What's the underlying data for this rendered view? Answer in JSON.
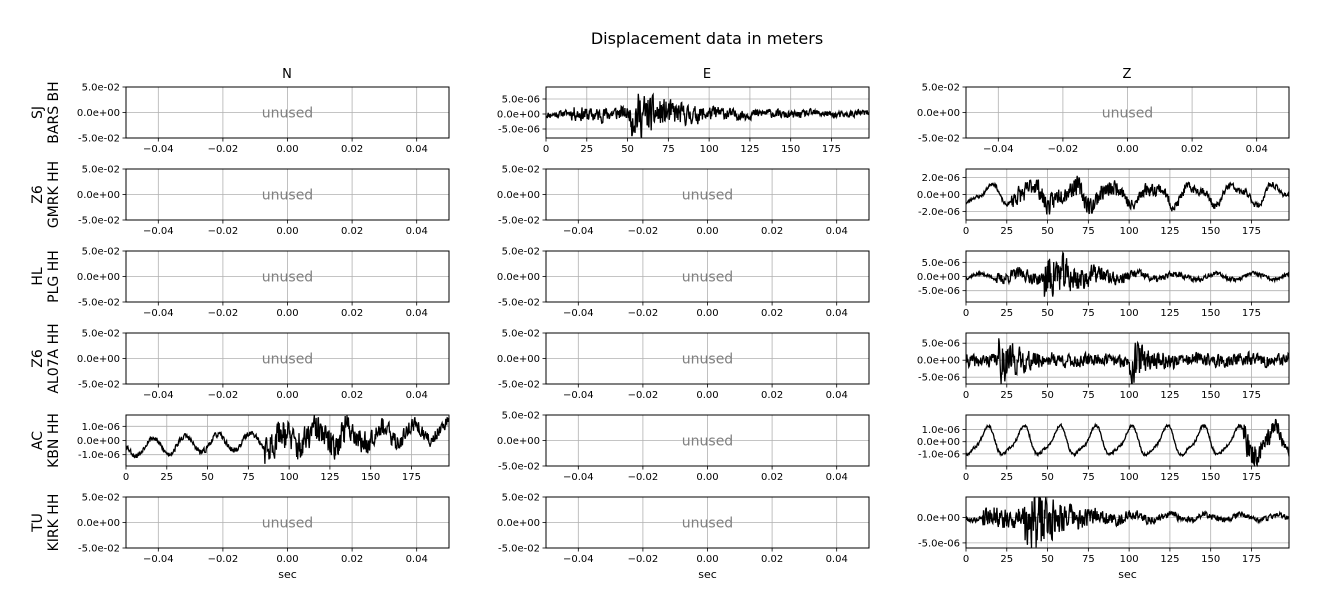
{
  "chart_data": {
    "type": "line",
    "title": "Displacement data in meters",
    "columns": [
      "N",
      "E",
      "Z"
    ],
    "xlabel": "sec",
    "unused_label": "unused",
    "line_color": "#000000",
    "grid": true,
    "unused_panel": {
      "xlim": [
        -0.05,
        0.05
      ],
      "xticks": [
        -0.04,
        -0.02,
        0.0,
        0.02,
        0.04
      ],
      "xtick_labels": [
        "−0.04",
        "−0.02",
        "0.00",
        "0.02",
        "0.04"
      ],
      "ylim": [
        -0.05,
        0.05
      ],
      "yticks": [
        0.05,
        0.0,
        -0.05
      ],
      "ytick_labels": [
        "5.0e-02",
        "0.0e+00",
        "-5.0e-02"
      ]
    },
    "rows": [
      {
        "label_line1": "SJ",
        "label_line2": "BARS BH",
        "panels": [
          {
            "used": false
          },
          {
            "used": true,
            "amp": 7e-06,
            "noise": 0.2,
            "seed": 11,
            "events": [
              {
                "t": 15,
                "t2": 45,
                "a": 0.25,
                "dur": 40
              },
              {
                "t": 52,
                "t2": 58,
                "a": 1.0,
                "dur": 25
              }
            ],
            "waves": [
              {
                "p": 30,
                "a": 0.05
              }
            ],
            "ylim": [
              -8e-06,
              9e-06
            ],
            "yticks": [
              5e-06,
              0.0,
              -5e-06
            ],
            "ytick_labels": [
              "5.0e-06",
              "0.0e+00",
              "-5.0e-06"
            ]
          },
          {
            "used": false
          }
        ]
      },
      {
        "label_line1": "Z6",
        "label_line2": "GMRK HH",
        "panels": [
          {
            "used": false
          },
          {
            "used": false
          },
          {
            "used": true,
            "amp": 2.2e-06,
            "noise": 0.12,
            "seed": 23,
            "events": [
              {
                "t": 28,
                "t2": 80,
                "a": 0.55,
                "dur": 60
              }
            ],
            "waves": [
              {
                "p": 25,
                "a": 0.45
              },
              {
                "p": 13,
                "a": 0.2
              }
            ],
            "ylim": [
              -3e-06,
              3e-06
            ],
            "yticks": [
              2e-06,
              0.0,
              -2e-06
            ],
            "ytick_labels": [
              "2.0e-06",
              "0.0e+00",
              "-2.0e-06"
            ]
          }
        ]
      },
      {
        "label_line1": "HL",
        "label_line2": "PLG HH",
        "panels": [
          {
            "used": false
          },
          {
            "used": false
          },
          {
            "used": true,
            "amp": 8e-06,
            "noise": 0.1,
            "seed": 37,
            "events": [
              {
                "t": 18,
                "t2": 45,
                "a": 0.25,
                "dur": 50
              },
              {
                "t": 48,
                "t2": 55,
                "a": 1.0,
                "dur": 20
              }
            ],
            "waves": [
              {
                "p": 24,
                "a": 0.12
              }
            ],
            "ylim": [
              -9e-06,
              9e-06
            ],
            "yticks": [
              5e-06,
              0.0,
              -5e-06
            ],
            "ytick_labels": [
              "5.0e-06",
              "0.0e+00",
              "-5.0e-06"
            ]
          }
        ]
      },
      {
        "label_line1": "Z6",
        "label_line2": "AL07A HH",
        "panels": [
          {
            "used": false
          },
          {
            "used": false
          },
          {
            "used": true,
            "amp": 7e-06,
            "noise": 0.35,
            "seed": 41,
            "events": [
              {
                "t": 20,
                "t2": 23,
                "a": 0.9,
                "dur": 10
              },
              {
                "t": 100,
                "t2": 103,
                "a": 0.9,
                "dur": 8
              }
            ],
            "waves": [
              {
                "p": 30,
                "a": 0.05
              }
            ],
            "ylim": [
              -7e-06,
              8e-06
            ],
            "yticks": [
              5e-06,
              0.0,
              -5e-06
            ],
            "ytick_labels": [
              "5.0e-06",
              "0.0e+00",
              "-5.0e-06"
            ]
          }
        ]
      },
      {
        "label_line1": "AC",
        "label_line2": "KBN HH",
        "panels": [
          {
            "used": true,
            "amp": 1.7e-06,
            "noise": 0.15,
            "seed": 53,
            "events": [
              {
                "t": 85,
                "t2": 130,
                "a": 0.7,
                "dur": 50
              }
            ],
            "waves": [
              {
                "p": 20,
                "a": 0.35
              }
            ],
            "trend": [
              -0.3,
              0.4
            ],
            "ylim": [
              -1.8e-06,
              1.8e-06
            ],
            "yticks": [
              1e-06,
              0.0,
              -1e-06
            ],
            "ytick_labels": [
              "1.0e-06",
              "0.0e+00",
              "-1.0e-06"
            ]
          },
          {
            "used": false
          },
          {
            "used": true,
            "amp": 2e-06,
            "noise": 0.08,
            "seed": 67,
            "events": [
              {
                "t": 170,
                "t2": 178,
                "a": 0.6,
                "dur": 20
              }
            ],
            "waves": [
              {
                "p": 22,
                "a": 0.55
              },
              {
                "p": 11,
                "a": 0.15
              }
            ],
            "ylim": [
              -2e-06,
              2.2e-06
            ],
            "yticks": [
              1e-06,
              0.0,
              -1e-06
            ],
            "ytick_labels": [
              "1.0e-06",
              "0.0e+00",
              "-1.0e-06"
            ]
          }
        ]
      },
      {
        "label_line1": "TU",
        "label_line2": "KIRK HH",
        "panels": [
          {
            "used": false
          },
          {
            "used": false
          },
          {
            "used": true,
            "amp": 7e-06,
            "noise": 0.08,
            "seed": 79,
            "events": [
              {
                "t": 10,
                "t2": 35,
                "a": 0.3,
                "dur": 55
              },
              {
                "t": 36,
                "t2": 42,
                "a": 1.0,
                "dur": 15
              }
            ],
            "waves": [
              {
                "p": 22,
                "a": 0.08
              }
            ],
            "ylim": [
              -6e-06,
              4e-06
            ],
            "yticks": [
              0.0,
              -5e-06
            ],
            "ytick_labels": [
              "0.0e+00",
              "-5.0e-06"
            ]
          }
        ]
      }
    ],
    "used_xlim": [
      0,
      198
    ],
    "used_xticks": [
      0,
      25,
      50,
      75,
      100,
      125,
      150,
      175
    ],
    "used_xtick_labels": [
      "0",
      "25",
      "50",
      "75",
      "100",
      "125",
      "150",
      "175"
    ]
  }
}
